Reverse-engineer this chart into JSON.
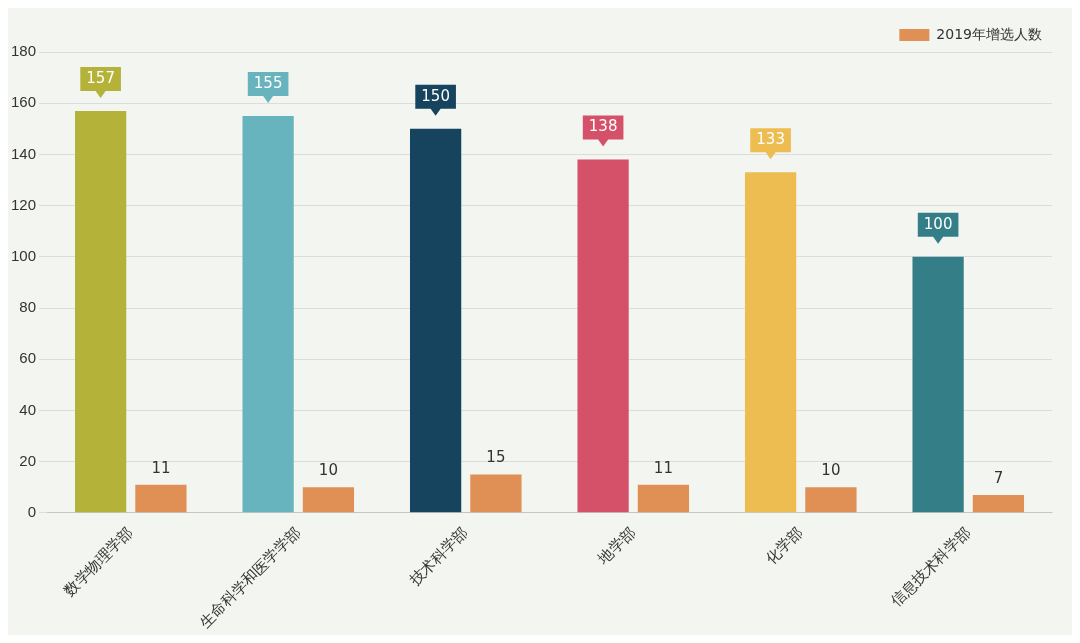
{
  "chart_data": {
    "type": "bar",
    "categories": [
      "数学物理学部",
      "生命科学和医学学部",
      "技术科学部",
      "地学部",
      "化学部",
      "信息技术科学部"
    ],
    "series": [
      {
        "colors": [
          "#b5b23a",
          "#68b4be",
          "#16445e",
          "#d5516a",
          "#edbd52",
          "#347f87"
        ],
        "values": [
          157,
          155,
          150,
          138,
          133,
          100
        ]
      },
      {
        "name": "2019年增选人数",
        "color": "#e08f55",
        "values": [
          11,
          10,
          15,
          11,
          10,
          7
        ]
      }
    ],
    "ylim": [
      0,
      180
    ],
    "yticks": [
      0,
      20,
      40,
      60,
      80,
      100,
      120,
      140,
      160,
      180
    ],
    "grid": "y",
    "legend": "top right",
    "data_labels": true
  }
}
